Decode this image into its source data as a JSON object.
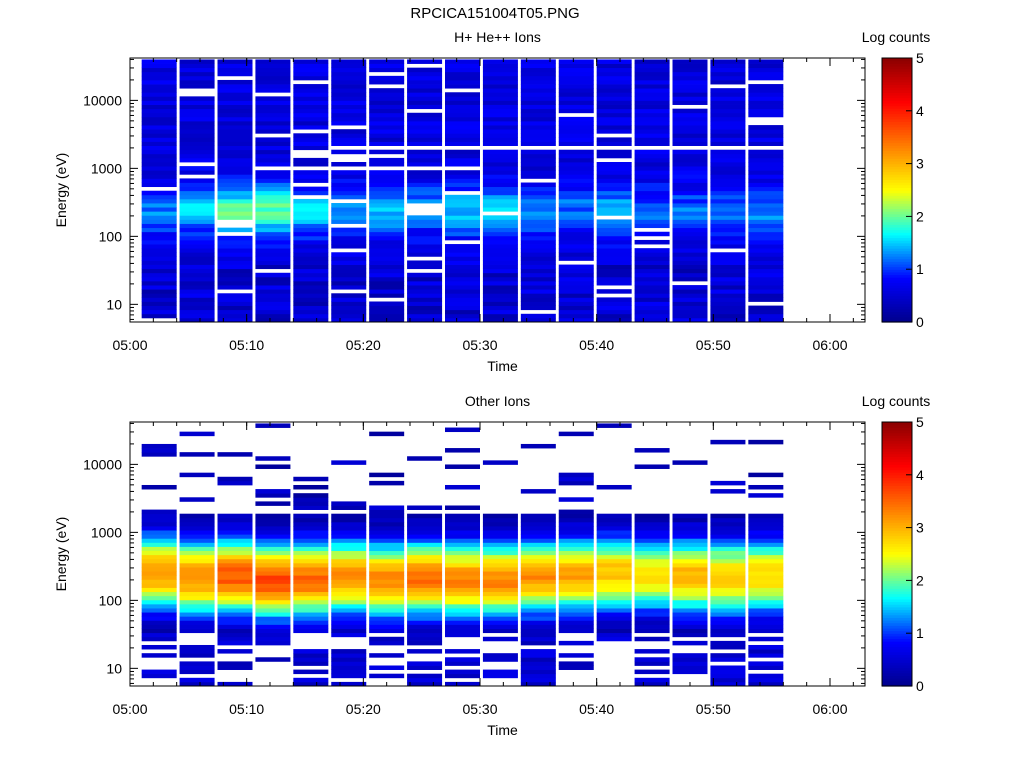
{
  "page": {
    "title": "RPCICA151004T05.PNG"
  },
  "colormap": [
    "#00008b",
    "#0000ff",
    "#00ffff",
    "#ffff00",
    "#ff7f00",
    "#ff0000",
    "#8b0000"
  ],
  "chart_data": [
    {
      "type": "heatmap",
      "title": "H+ He++ Ions",
      "xlabel": "Time",
      "ylabel": "Energy (eV)",
      "yscale": "log",
      "xlim": [
        "05:00",
        "06:03"
      ],
      "ylim": [
        5.5,
        42000
      ],
      "x_ticks": [
        "05:00",
        "05:10",
        "05:20",
        "05:30",
        "05:40",
        "05:50",
        "06:00"
      ],
      "y_ticks": [
        "10",
        "100",
        "1000",
        "10000"
      ],
      "colorbar": {
        "label": "Log counts",
        "min": 0,
        "max": 5,
        "ticks": [
          "0",
          "1",
          "2",
          "3",
          "4",
          "5"
        ]
      },
      "time_columns": [
        "05:02:30",
        "05:05:45",
        "05:09:00",
        "05:12:15",
        "05:15:30",
        "05:18:45",
        "05:22:00",
        "05:25:15",
        "05:28:30",
        "05:31:45",
        "05:35:00",
        "05:38:15",
        "05:41:30",
        "05:44:45",
        "05:48:00",
        "05:51:15",
        "05:54:30"
      ],
      "energy_range": [
        5.5,
        40000
      ],
      "profile": {
        "peak_energy": [
          230,
          260,
          230,
          240,
          230,
          240,
          230,
          250,
          230,
          240,
          230,
          250,
          230,
          240,
          230,
          250,
          230
        ],
        "peak_log_counts": [
          1.2,
          1.5,
          2.0,
          2.0,
          1.6,
          1.3,
          1.4,
          1.3,
          1.5,
          1.5,
          1.2,
          1.2,
          1.4,
          1.2,
          1.2,
          1.2,
          1.3
        ],
        "background_log_counts": 0.6,
        "low_energy_log_counts": 0.2
      }
    },
    {
      "type": "heatmap",
      "title": "Other Ions",
      "xlabel": "Time",
      "ylabel": "Energy (eV)",
      "yscale": "log",
      "xlim": [
        "05:00",
        "06:03"
      ],
      "ylim": [
        5.5,
        42000
      ],
      "x_ticks": [
        "05:00",
        "05:10",
        "05:20",
        "05:30",
        "05:40",
        "05:50",
        "06:00"
      ],
      "y_ticks": [
        "10",
        "100",
        "1000",
        "10000"
      ],
      "colorbar": {
        "label": "Log counts",
        "min": 0,
        "max": 5,
        "ticks": [
          "0",
          "1",
          "2",
          "3",
          "4",
          "5"
        ]
      },
      "time_columns": [
        "05:02:30",
        "05:05:45",
        "05:09:00",
        "05:12:15",
        "05:15:30",
        "05:18:45",
        "05:22:00",
        "05:25:15",
        "05:28:30",
        "05:31:45",
        "05:35:00",
        "05:38:15",
        "05:41:30",
        "05:44:45",
        "05:48:00",
        "05:51:15",
        "05:54:30"
      ],
      "energy_range": [
        5.5,
        40000
      ],
      "profile": {
        "peak_energy": [
          260,
          220,
          230,
          200,
          210,
          220,
          200,
          210,
          200,
          200,
          220,
          230,
          250,
          240,
          230,
          220,
          230
        ],
        "peak_log_counts": [
          3.2,
          3.3,
          3.6,
          3.7,
          3.5,
          3.2,
          3.3,
          3.4,
          3.3,
          3.3,
          3.2,
          3.1,
          2.9,
          2.7,
          3.0,
          2.9,
          2.8
        ],
        "spread_decades": 0.55,
        "continuum_upper_eV": 1900,
        "sparse_upper_eV": 35000,
        "low_energy_log_counts": 0.3
      }
    }
  ]
}
